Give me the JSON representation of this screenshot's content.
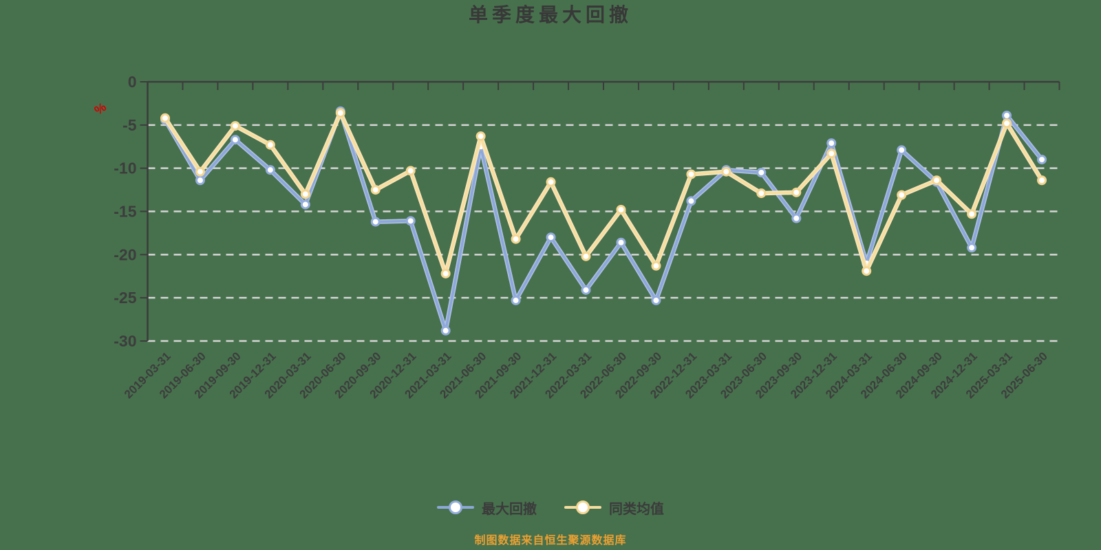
{
  "page": {
    "background_color": "#47714D"
  },
  "header": {
    "title": "单季度最大回撤"
  },
  "y_axis": {
    "unit_label": "%",
    "unit_color": "#D40000",
    "tick_labels": [
      "0",
      "-5",
      "-10",
      "-15",
      "-20",
      "-25",
      "-30"
    ]
  },
  "footer": {
    "source_note": "制图数据来自恒生聚源数据库",
    "color": "#EBA032"
  },
  "legend": {
    "items": [
      "最大回撤",
      "同类均值"
    ]
  },
  "chart_data": {
    "type": "line",
    "title": "单季度最大回撤",
    "categories": [
      "2019-03-31",
      "2019-06-30",
      "2019-09-30",
      "2019-12-31",
      "2020-03-31",
      "2020-06-30",
      "2020-09-30",
      "2020-12-31",
      "2021-03-31",
      "2021-06-30",
      "2021-09-30",
      "2021-12-31",
      "2022-03-31",
      "2022-06-30",
      "2022-09-30",
      "2022-12-31",
      "2023-03-31",
      "2023-06-30",
      "2023-09-30",
      "2023-12-31",
      "2024-03-31",
      "2024-06-30",
      "2024-09-30",
      "2024-12-31",
      "2025-03-31",
      "2025-06-30"
    ],
    "series": [
      {
        "name": "最大回撤",
        "color": "#8CA7D8",
        "halo_color": "#AFC2E6",
        "marker_ring_color": "#93ACDB",
        "values": [
          -4.4,
          -11.4,
          -6.7,
          -10.2,
          -14.2,
          -3.4,
          -16.2,
          -16.1,
          -28.8,
          -7.5,
          -25.3,
          -18.0,
          -24.1,
          -18.6,
          -25.3,
          -13.8,
          -10.2,
          -10.5,
          -15.8,
          -7.1,
          -21.0,
          -7.9,
          -11.6,
          -19.2,
          -3.9,
          -9.0
        ]
      },
      {
        "name": "同类均值",
        "color": "#F7DDA0",
        "halo_color": "#FAE8BE",
        "marker_ring_color": "#F4D691",
        "values": [
          -4.2,
          -10.4,
          -5.1,
          -7.3,
          -13.0,
          -3.6,
          -12.5,
          -10.3,
          -22.2,
          -6.3,
          -18.2,
          -11.6,
          -20.2,
          -14.8,
          -21.3,
          -10.7,
          -10.4,
          -12.9,
          -12.8,
          -8.3,
          -21.9,
          -13.1,
          -11.4,
          -15.3,
          -4.8,
          -11.4
        ]
      }
    ],
    "xlabel": "",
    "ylabel": "%",
    "ylim": [
      -30,
      0
    ],
    "y_tick_step": 5,
    "grid": "horizontal dashed",
    "grid_color": "#D6D6D6",
    "axis_color": "#3C3C3C",
    "label_color": "#3D3D3D",
    "legend_position": "bottom",
    "x_label_rotation": 45
  }
}
